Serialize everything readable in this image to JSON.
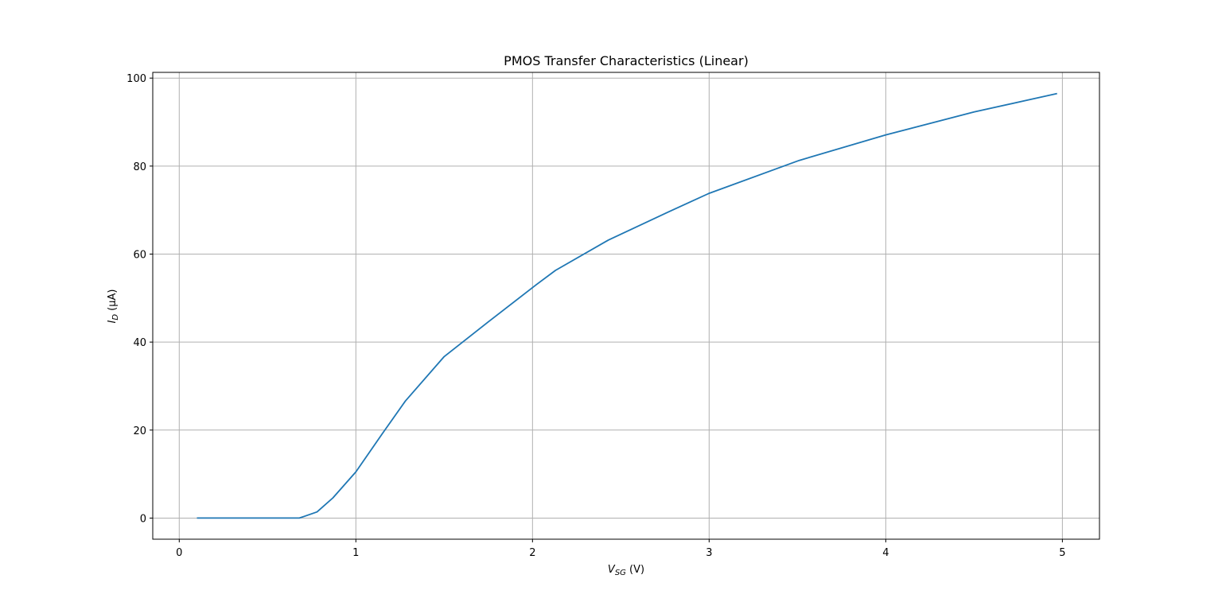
{
  "chart_data": {
    "type": "line",
    "title": "PMOS Transfer Characteristics (Linear)",
    "xlabel": {
      "main": "V",
      "sub": "SG",
      "rest": " (V)"
    },
    "ylabel": {
      "main": "I",
      "sub": "D",
      "rest": " (μA)"
    },
    "xlim": [
      -0.15,
      5.21
    ],
    "ylim": [
      -4.8,
      101.3
    ],
    "xticks": [
      0,
      1,
      2,
      3,
      4,
      5
    ],
    "yticks": [
      0,
      20,
      40,
      60,
      80,
      100
    ],
    "grid": true,
    "line_color": "#1f77b4",
    "grid_color": "#b0b0b0",
    "series": [
      {
        "x": [
          0.1,
          0.2,
          0.3,
          0.4,
          0.5,
          0.6,
          0.68,
          0.78,
          0.87,
          1.0,
          1.15,
          1.28,
          1.5,
          1.75,
          2.02,
          2.13,
          2.43,
          2.77,
          3.0,
          3.51,
          4.0,
          4.5,
          4.97
        ],
        "y": [
          0,
          0,
          0,
          0,
          0,
          0,
          0,
          1.4,
          4.6,
          10.5,
          19.2,
          26.6,
          36.7,
          44.6,
          53.0,
          56.3,
          63.2,
          69.6,
          73.8,
          81.3,
          87.1,
          92.3,
          96.5
        ]
      }
    ]
  }
}
